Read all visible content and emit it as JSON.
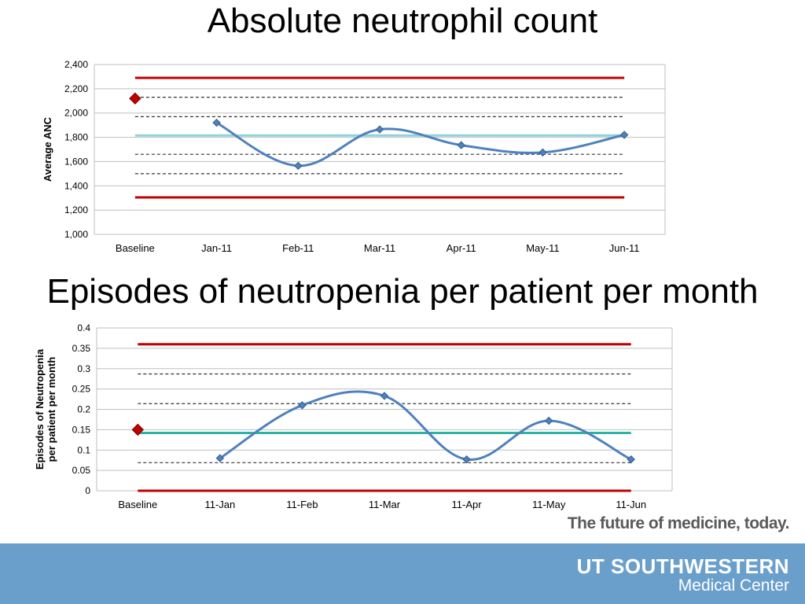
{
  "header": {
    "title1": "Absolute neutrophil count",
    "title2": "Episodes of neutropenia per patient per month"
  },
  "branding": {
    "tagline": "The future of medicine, today.",
    "logo_main": "UT SOUTHWESTERN",
    "logo_sub": "Medical Center",
    "footer_color": "#6a9fcc"
  },
  "chart_data": [
    {
      "type": "line",
      "title": "Absolute neutrophil count",
      "ylabel": "Average ANC",
      "xlabel": "",
      "categories": [
        "Baseline",
        "Jan-11",
        "Feb-11",
        "Mar-11",
        "Apr-11",
        "May-11",
        "Jun-11"
      ],
      "ylim": [
        1000,
        2400
      ],
      "yticks": [
        1000,
        1200,
        1400,
        1600,
        1800,
        2000,
        2200,
        2400
      ],
      "ytick_labels": [
        "1,000",
        "1,200",
        "1,400",
        "1,600",
        "1,800",
        "2,000",
        "2,200",
        "2,400"
      ],
      "grid": true,
      "baseline_value": 2120,
      "series": [
        {
          "values": [
            null,
            1920,
            1565,
            1865,
            1735,
            1675,
            1820
          ],
          "color": "#4f81bd"
        }
      ],
      "reference_lines": [
        {
          "value": 2290,
          "style": "solid",
          "color": "#c00000"
        },
        {
          "value": 1305,
          "style": "solid",
          "color": "#c00000"
        },
        {
          "value": 1815,
          "style": "solid",
          "color": "#8fd3dc"
        },
        {
          "value": 2130,
          "style": "dashed",
          "color": "#333333"
        },
        {
          "value": 1970,
          "style": "dashed",
          "color": "#333333"
        },
        {
          "value": 1660,
          "style": "dashed",
          "color": "#333333"
        },
        {
          "value": 1500,
          "style": "dashed",
          "color": "#333333"
        }
      ]
    },
    {
      "type": "line",
      "title": "Episodes of neutropenia per patient per month",
      "ylabel": "Episodes of Neutropenia per patient per month",
      "ylabel_lines": [
        "Episodes of Neutropenia",
        "per patient per month"
      ],
      "xlabel": "",
      "categories": [
        "Baseline",
        "11-Jan",
        "11-Feb",
        "11-Mar",
        "11-Apr",
        "11-May",
        "11-Jun"
      ],
      "ylim": [
        0,
        0.4
      ],
      "yticks": [
        0,
        0.05,
        0.1,
        0.15,
        0.2,
        0.25,
        0.3,
        0.35,
        0.4
      ],
      "ytick_labels": [
        "0",
        "0.05",
        "0.1",
        "0.15",
        "0.2",
        "0.25",
        "0.3",
        "0.35",
        "0.4"
      ],
      "grid": true,
      "baseline_value": 0.15,
      "series": [
        {
          "values": [
            null,
            0.08,
            0.21,
            0.233,
            0.077,
            0.172,
            0.077
          ],
          "color": "#4f81bd"
        }
      ],
      "reference_lines": [
        {
          "value": 0.36,
          "style": "solid",
          "color": "#c00000"
        },
        {
          "value": 0.0,
          "style": "solid",
          "color": "#c00000"
        },
        {
          "value": 0.142,
          "style": "solid",
          "color": "#2ab3a6"
        },
        {
          "value": 0.287,
          "style": "dashed",
          "color": "#333333"
        },
        {
          "value": 0.214,
          "style": "dashed",
          "color": "#333333"
        },
        {
          "value": 0.069,
          "style": "dashed",
          "color": "#333333"
        }
      ]
    }
  ]
}
